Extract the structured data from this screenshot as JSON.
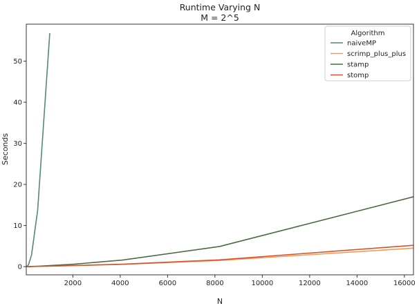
{
  "chart_data": {
    "type": "line",
    "title": "Runtime Varying N",
    "subtitle": "M = 2^5",
    "xlabel": "N",
    "ylabel": "Seconds",
    "xlim": [
      32,
      16384
    ],
    "ylim": [
      -2,
      59
    ],
    "xticks": [
      "2000",
      "4000",
      "6000",
      "8000",
      "10000",
      "12000",
      "14000",
      "16000"
    ],
    "yticks": [
      "0",
      "10",
      "20",
      "30",
      "40",
      "50"
    ],
    "grid": false,
    "legend": {
      "title": "Algorithm",
      "placement": "top-right"
    },
    "series": [
      {
        "name": "naiveMP",
        "color": "#4f8a76",
        "x": [
          32,
          64,
          128,
          256,
          512,
          1024
        ],
        "y": [
          0.0,
          0.1,
          0.5,
          2.9,
          13.7,
          56.8
        ]
      },
      {
        "name": "scrimp_plus_plus",
        "color": "#f59a5c",
        "x": [
          32,
          64,
          128,
          256,
          512,
          1024,
          2048,
          4096,
          8192,
          16384
        ],
        "y": [
          0.0,
          0.0,
          0.01,
          0.03,
          0.06,
          0.12,
          0.26,
          0.55,
          1.5,
          4.5
        ]
      },
      {
        "name": "stamp",
        "color": "#4e6b43",
        "x": [
          32,
          64,
          128,
          256,
          512,
          1024,
          2048,
          4096,
          8192,
          16384
        ],
        "y": [
          0.0,
          0.01,
          0.02,
          0.05,
          0.1,
          0.25,
          0.6,
          1.6,
          4.9,
          17.0
        ]
      },
      {
        "name": "stomp",
        "color": "#d2552d",
        "x": [
          32,
          64,
          128,
          256,
          512,
          1024,
          2048,
          4096,
          8192,
          16384
        ],
        "y": [
          0.0,
          0.0,
          0.01,
          0.03,
          0.06,
          0.12,
          0.27,
          0.6,
          1.65,
          5.2
        ]
      }
    ]
  }
}
